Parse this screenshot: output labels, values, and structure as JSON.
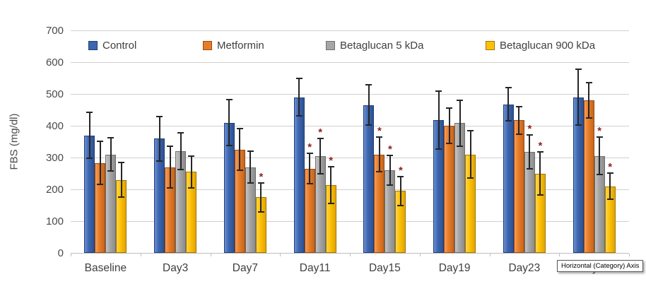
{
  "chart_data": {
    "type": "bar",
    "title": "",
    "xlabel": "",
    "ylabel": "FBS (mg/dl)",
    "ylim": [
      0,
      700
    ],
    "yticks": [
      0,
      100,
      200,
      300,
      400,
      500,
      600,
      700
    ],
    "grid": true,
    "legend_position": "top",
    "significance_marker": "*",
    "marker_color": "#8e2323",
    "error_bar_color": "#262626",
    "categories": [
      "Baseline",
      "Day3",
      "Day7",
      "Day11",
      "Day15",
      "Day19",
      "Day23",
      "Day28"
    ],
    "series": [
      {
        "name": "Control",
        "color": "#3d66b0",
        "color_light": "#6b8fd0",
        "color_dark": "#2e528f",
        "border": "#1f3e7c",
        "values": [
          370,
          360,
          410,
          490,
          465,
          418,
          467,
          490
        ],
        "errors": [
          72,
          70,
          73,
          59,
          63,
          92,
          52,
          88
        ],
        "significant": [
          false,
          false,
          false,
          false,
          false,
          false,
          false,
          false
        ]
      },
      {
        "name": "Metformin",
        "color": "#e87d28",
        "color_light": "#f49d5c",
        "color_dark": "#c4651c",
        "border": "#9c4a12",
        "values": [
          283,
          270,
          325,
          265,
          310,
          400,
          417,
          480
        ],
        "errors": [
          68,
          65,
          66,
          48,
          54,
          56,
          43,
          55
        ],
        "significant": [
          false,
          false,
          false,
          true,
          true,
          false,
          false,
          false
        ]
      },
      {
        "name": "Betaglucan 5 kDa",
        "color": "#a6a6a6",
        "color_light": "#c6c6c6",
        "color_dark": "#8c8c8c",
        "border": "#707070",
        "values": [
          310,
          320,
          270,
          305,
          260,
          408,
          318,
          305
        ],
        "errors": [
          52,
          58,
          50,
          55,
          46,
          72,
          54,
          59
        ],
        "significant": [
          false,
          false,
          false,
          true,
          true,
          false,
          true,
          true
        ]
      },
      {
        "name": "Betaglucan 900 kDa",
        "color": "#ffc107",
        "color_light": "#ffd44d",
        "color_dark": "#dfa400",
        "border": "#a07800",
        "values": [
          230,
          255,
          175,
          213,
          195,
          310,
          250,
          210
        ],
        "errors": [
          55,
          50,
          46,
          58,
          46,
          74,
          68,
          42
        ],
        "significant": [
          false,
          false,
          true,
          true,
          true,
          false,
          true,
          true
        ]
      }
    ]
  },
  "tooltip": {
    "text": "Horizontal (Category) Axis"
  }
}
